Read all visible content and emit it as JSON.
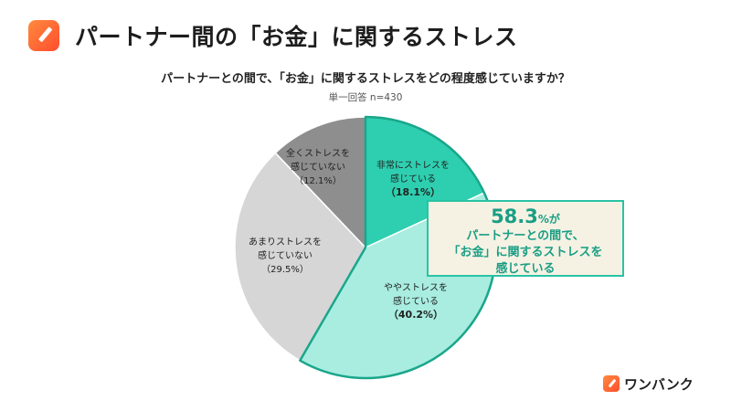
{
  "header": {
    "title": "パートナー間の「お金」に関するストレス",
    "logo_icon": "pencil-app-icon"
  },
  "chart_data": {
    "type": "pie",
    "title": "パートナーとの間で、「お金」に関するストレスをどの程度感じていますか？",
    "subtitle": "単一回答 n=430",
    "slices": [
      {
        "label_lines": [
          "非常にストレスを",
          "感じている"
        ],
        "pct_text": "（18.1%）",
        "value": 18.1,
        "color": "#2ecfb0",
        "highlight": true
      },
      {
        "label_lines": [
          "ややストレスを",
          "感じている"
        ],
        "pct_text": "（40.2%）",
        "value": 40.2,
        "color": "#a8ede0",
        "highlight": true
      },
      {
        "label_lines": [
          "あまりストレスを",
          "感じていない"
        ],
        "pct_text": "（29.5%）",
        "value": 29.5,
        "color": "#d6d6d6",
        "highlight": false
      },
      {
        "label_lines": [
          "全くストレスを",
          "感じていない"
        ],
        "pct_text": "（12.1%）",
        "value": 12.1,
        "color": "#8e8e8e",
        "highlight": false
      }
    ],
    "highlight_color": "#1aa68b"
  },
  "callout": {
    "value": "58.3",
    "unit": "%が",
    "line1": "パートナーとの間で、",
    "line2": "「お金」に関するストレスを",
    "line3": "感じている"
  },
  "brand": {
    "name": "ワンバンク",
    "icon": "pencil-app-icon"
  }
}
